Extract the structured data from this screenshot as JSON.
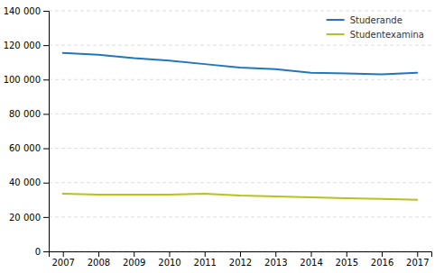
{
  "chart_data": {
    "type": "line",
    "x": [
      2007,
      2008,
      2009,
      2010,
      2011,
      2012,
      2013,
      2014,
      2015,
      2016,
      2017
    ],
    "series": [
      {
        "name": "Studerande",
        "color": "#2176c0",
        "values": [
          115500,
          114500,
          112500,
          111000,
          109000,
          107000,
          106000,
          104000,
          103500,
          103000,
          104000
        ]
      },
      {
        "name": "Studentexamina",
        "color": "#b5c41a",
        "values": [
          33500,
          33000,
          33000,
          33000,
          33500,
          32500,
          32000,
          31500,
          31000,
          30500,
          30000
        ]
      }
    ],
    "xlim": [
      2006.6,
      2017.4
    ],
    "xticks": [
      2007,
      2008,
      2009,
      2010,
      2011,
      2012,
      2013,
      2014,
      2015,
      2016,
      2017
    ],
    "ylim": [
      0,
      140000
    ],
    "yticks": [
      0,
      {
        "value": 20000,
        "label": "20 000"
      },
      {
        "value": 40000,
        "label": "40 000"
      },
      {
        "value": 60000,
        "label": "60 000"
      },
      {
        "value": 80000,
        "label": "80 000"
      },
      {
        "value": 100000,
        "label": "100 000"
      },
      {
        "value": 120000,
        "label": "120 000"
      },
      {
        "value": 140000,
        "label": "140 000"
      }
    ],
    "grid": true,
    "legend": "upper right"
  }
}
